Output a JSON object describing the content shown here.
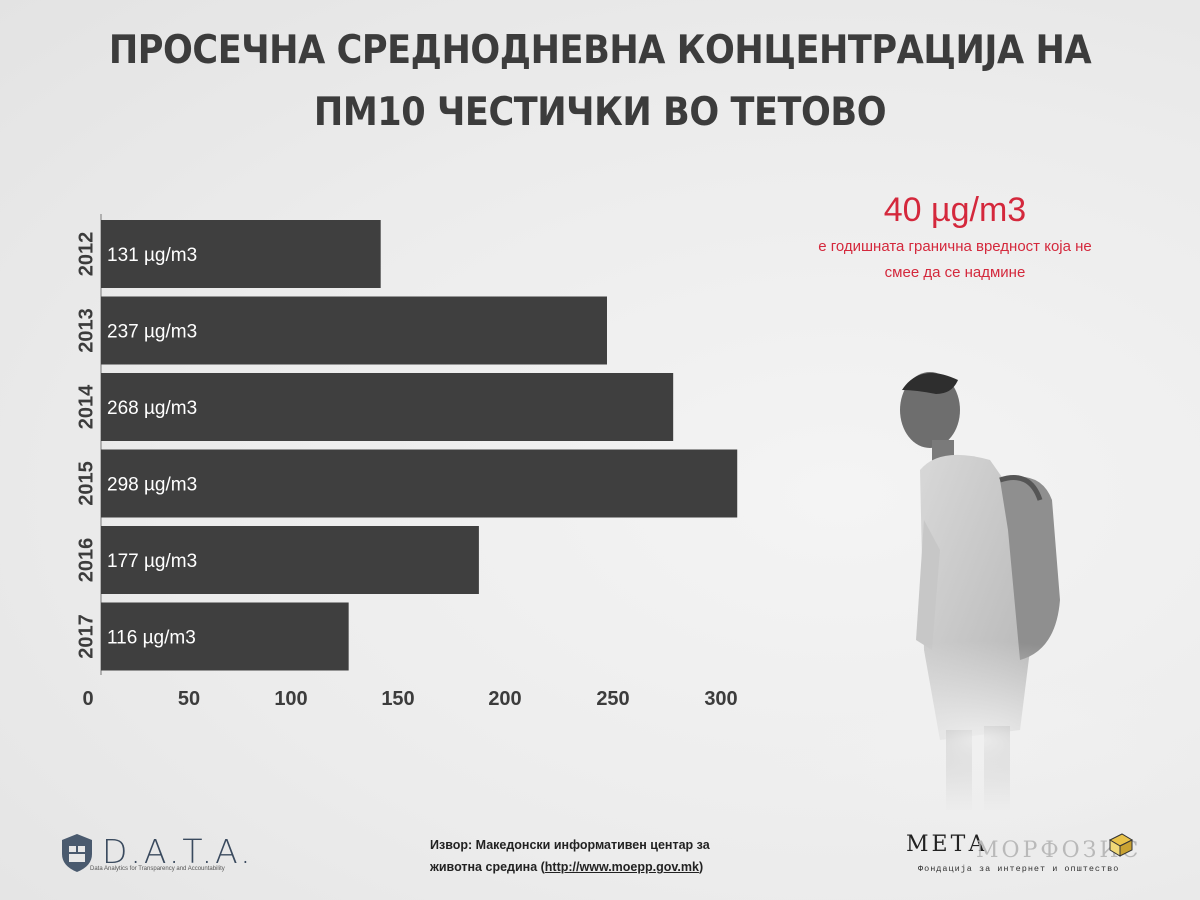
{
  "title": {
    "line1": "ПРОСЕЧНА СРЕДНОДНЕВНА КОНЦЕНТРАЦИЈА НА",
    "line2": "ПМ10 ЧЕСТИЧКИ ВО ТЕТОВО"
  },
  "limit": {
    "value": "40 µg/m3",
    "text": "е годишната гранична вредност која не смее да се надмине"
  },
  "source": {
    "prefix": "Извор: Македонски информативен центар за животна средина (",
    "link": "http://www.moepp.gov.mk",
    "suffix": ")"
  },
  "logos": {
    "data_word": "D.A.T.A.",
    "data_tagline": "Data Analytics for Transparency and Accountability",
    "meta_word1": "МЕТА",
    "meta_word2": "МОРФОЗИС",
    "meta_tagline": "Фондација за интернет и општество"
  },
  "colors": {
    "bar": "#3f3f3f",
    "limit_accent": "#d4283c",
    "title": "#3c3c3c"
  },
  "chart_data": {
    "type": "bar",
    "orientation": "horizontal",
    "categories": [
      "2012",
      "2013",
      "2014",
      "2015",
      "2016",
      "2017"
    ],
    "values": [
      131,
      237,
      268,
      298,
      177,
      116
    ],
    "data_labels": [
      "131 µg/m3",
      "237 µg/m3",
      "268 µg/m3",
      "298 µg/m3",
      "177 µg/m3",
      "116 µg/m3"
    ],
    "x_ticks": [
      0,
      50,
      100,
      150,
      200,
      250,
      300
    ],
    "xlim": [
      0,
      300
    ],
    "grid": false
  }
}
